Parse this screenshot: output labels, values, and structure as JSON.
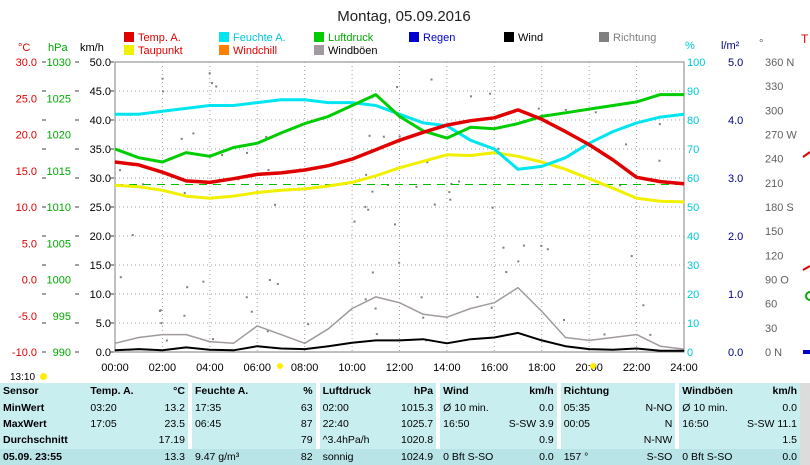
{
  "title": "Montag, 05.09.2016",
  "axes_labels": {
    "temp": "°C",
    "press": "hPa",
    "wind": "km/h",
    "hum": "%",
    "rain": "l/m²",
    "dir": "°"
  },
  "legend": [
    {
      "label": "Temp. A.",
      "color": "#e00000"
    },
    {
      "label": "Feuchte A.",
      "color": "#00e5f0"
    },
    {
      "label": "Luftdruck",
      "color": "#00cc00"
    },
    {
      "label": "Regen",
      "color": "#0000d0"
    },
    {
      "label": "Wind",
      "color": "#000000"
    },
    {
      "label": "Richtung",
      "color": "#808080"
    },
    {
      "label": "Taupunkt",
      "color": "#f0f000"
    },
    {
      "label": "Windchill",
      "color": "#ff8000"
    },
    {
      "label": "Windböen",
      "color": "#a09aa0"
    }
  ],
  "colors": {
    "temp_axis": "#e00000",
    "press_axis": "#00aa00",
    "hum_axis": "#00c8d8",
    "rain_axis": "#000080",
    "dir_axis": "#606060",
    "grid": "#a0a0a0",
    "ref_line": "#00bb00"
  },
  "axis_ticks": {
    "temp": [
      "30.0",
      "25.0",
      "20.0",
      "15.0",
      "10.0",
      "5.0",
      "0.0",
      "-5.0",
      "-10.0"
    ],
    "press": [
      "1030",
      "1025",
      "1020",
      "1015",
      "1010",
      "1005",
      "1000",
      "995",
      "990"
    ],
    "wind": [
      "50.0",
      "45.0",
      "40.0",
      "35.0",
      "30.0",
      "25.0",
      "20.0",
      "15.0",
      "10.0",
      "5.0",
      "0.0"
    ],
    "hum": [
      "100",
      "90",
      "80",
      "70",
      "60",
      "50",
      "40",
      "30",
      "20",
      "10",
      "0"
    ],
    "rain": [
      "5.0",
      "4.0",
      "3.0",
      "2.0",
      "1.0",
      "0.0"
    ],
    "dir": [
      "360 N",
      "330",
      "300",
      "270 W",
      "240",
      "210",
      "180 S",
      "150",
      "120",
      "90 O",
      "60",
      "30",
      "0 N"
    ]
  },
  "time_labels": [
    "00:00",
    "02:00",
    "04:00",
    "06:00",
    "08:00",
    "10:00",
    "12:00",
    "14:00",
    "16:00",
    "18:00",
    "20:00",
    "22:00",
    "24:00"
  ],
  "now_label": "13:10",
  "chart_data": {
    "type": "line",
    "title": "Montag, 05.09.2016",
    "x_unit": "hours",
    "x_range": [
      0,
      24
    ],
    "axes": {
      "temp_c": [
        -10,
        30
      ],
      "pressure_hpa": [
        990,
        1030
      ],
      "wind_kmh": [
        0,
        50
      ],
      "humidity_pct": [
        0,
        100
      ],
      "rain_lm2": [
        0,
        5
      ],
      "direction_deg": [
        0,
        360
      ]
    },
    "series": [
      {
        "name": "Temp. A.",
        "unit": "°C",
        "x": [
          0,
          1,
          2,
          3,
          4,
          5,
          6,
          7,
          8,
          9,
          10,
          11,
          12,
          13,
          14,
          15,
          16,
          17,
          18,
          19,
          20,
          21,
          22,
          23,
          24
        ],
        "values": [
          16.2,
          15.8,
          14.8,
          13.6,
          13.4,
          13.9,
          14.5,
          14.7,
          15.1,
          15.7,
          16.6,
          17.9,
          19.2,
          20.3,
          21.3,
          21.9,
          22.3,
          23.4,
          22.1,
          20.4,
          18.6,
          16.5,
          14.1,
          13.5,
          13.2
        ]
      },
      {
        "name": "Feuchte A.",
        "unit": "%",
        "x": [
          0,
          1,
          2,
          3,
          4,
          5,
          6,
          7,
          8,
          9,
          10,
          11,
          12,
          13,
          14,
          15,
          16,
          17,
          18,
          19,
          20,
          21,
          22,
          23,
          24
        ],
        "values": [
          82,
          82,
          83,
          84,
          85,
          85,
          86,
          87,
          87,
          86,
          86,
          85,
          82,
          79,
          78,
          73,
          70,
          63,
          64,
          67,
          72,
          76,
          79,
          81,
          82
        ]
      },
      {
        "name": "Luftdruck",
        "unit": "hPa",
        "x": [
          0,
          1,
          2,
          3,
          4,
          5,
          6,
          7,
          8,
          9,
          10,
          11,
          12,
          13,
          14,
          15,
          16,
          17,
          18,
          19,
          20,
          21,
          22,
          23,
          24
        ],
        "values": [
          1018.0,
          1016.8,
          1016.2,
          1017.5,
          1017.0,
          1018.2,
          1018.8,
          1020.2,
          1021.5,
          1022.5,
          1024.0,
          1025.5,
          1022.5,
          1020.5,
          1019.5,
          1021.0,
          1020.8,
          1021.5,
          1022.5,
          1023.0,
          1023.5,
          1024.0,
          1024.5,
          1025.5,
          1025.5
        ]
      },
      {
        "name": "Taupunkt",
        "unit": "°C",
        "x": [
          0,
          1,
          2,
          3,
          4,
          5,
          6,
          7,
          8,
          9,
          10,
          11,
          12,
          13,
          14,
          15,
          16,
          17,
          18,
          19,
          20,
          21,
          22,
          23,
          24
        ],
        "values": [
          13.0,
          12.8,
          12.3,
          11.5,
          11.2,
          11.5,
          12.0,
          12.3,
          12.5,
          12.9,
          13.4,
          14.3,
          15.4,
          16.3,
          17.2,
          17.1,
          17.5,
          17.0,
          16.2,
          15.2,
          13.9,
          12.6,
          11.2,
          10.8,
          10.7
        ]
      },
      {
        "name": "Wind",
        "unit": "km/h",
        "x": [
          0,
          1,
          2,
          3,
          4,
          5,
          6,
          7,
          8,
          9,
          10,
          11,
          12,
          13,
          14,
          15,
          16,
          17,
          18,
          19,
          20,
          21,
          22,
          23,
          24
        ],
        "values": [
          0.3,
          0.5,
          0.3,
          0.8,
          0.4,
          0.3,
          1.0,
          0.6,
          0.5,
          1.0,
          1.6,
          2.0,
          2.0,
          2.2,
          1.5,
          2.2,
          2.5,
          3.3,
          2.0,
          1.0,
          0.5,
          0.4,
          0.6,
          0.2,
          0.2
        ]
      },
      {
        "name": "Windböen",
        "unit": "km/h",
        "x": [
          0,
          1,
          2,
          3,
          4,
          5,
          6,
          7,
          8,
          9,
          10,
          11,
          12,
          13,
          14,
          15,
          16,
          17,
          18,
          19,
          20,
          21,
          22,
          23,
          24
        ],
        "values": [
          1.5,
          2.5,
          3.0,
          3.0,
          1.8,
          1.5,
          4.5,
          3.0,
          1.5,
          4.0,
          7.5,
          9.5,
          8.5,
          6.5,
          6.0,
          7.5,
          8.5,
          11.1,
          7.0,
          2.5,
          2.0,
          2.5,
          3.0,
          1.0,
          0.5
        ]
      }
    ]
  },
  "stats": {
    "headers": [
      "Sensor",
      "Temp. A.",
      "°C",
      "Feuchte A.",
      "%",
      "Luftdruck",
      "hPa",
      "Wind",
      "km/h",
      "Richtung",
      "",
      "Windböen",
      "km/h"
    ],
    "rows": [
      [
        "MinWert",
        "03:20",
        "13.2",
        "17:35",
        "63",
        "02:00",
        "1015.3",
        "Ø 10 min.",
        "0.0",
        "05:35",
        "N-NO",
        "Ø 10 min.",
        "0.0"
      ],
      [
        "MaxWert",
        "17:05",
        "23.5",
        "06:45",
        "87",
        "22:40",
        "1025.7",
        "16:50",
        "S-SW 3.9",
        "00:05",
        "N",
        "16:50",
        "S-SW 11.1"
      ],
      [
        "Durchschnitt",
        "",
        "17.19",
        "",
        "79",
        "^3.4hPa/h",
        "1020.8",
        "",
        "0.9",
        "",
        "N-NW",
        "",
        "1.5"
      ],
      [
        "05.09. 23:55",
        "",
        "13.3",
        "9.47 g/m³",
        "82",
        "sonnig",
        "1024.9",
        "0 Bft S-SO",
        "0.0",
        "157 °",
        "S-SO",
        "0 Bft S-SO",
        "0.0"
      ]
    ]
  }
}
